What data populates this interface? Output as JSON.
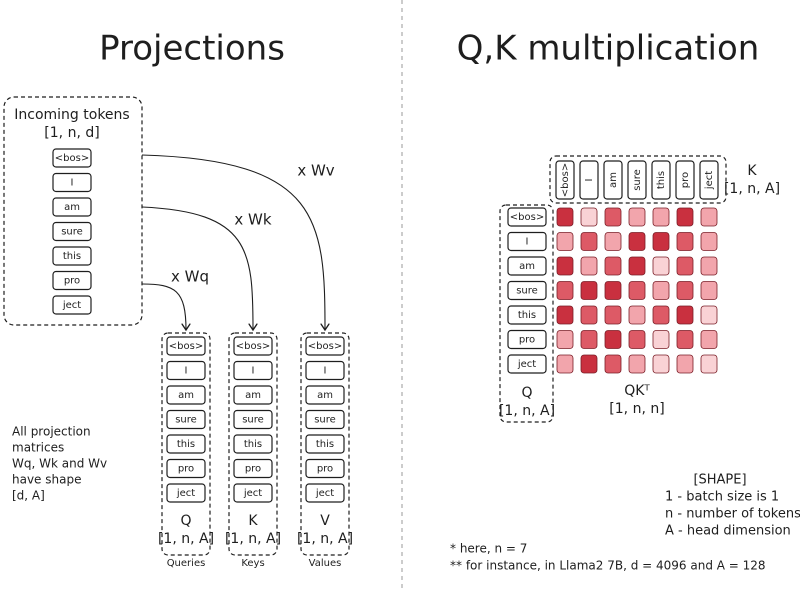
{
  "projections": {
    "title": "Projections",
    "incoming": {
      "title": "Incoming tokens",
      "shape": "[1, n, d]"
    },
    "tokens": [
      "<bos>",
      "I",
      "am",
      "sure",
      "this",
      "pro",
      "ject"
    ],
    "arrow_labels": [
      "x Wq",
      "x Wk",
      "x Wv"
    ],
    "columns": [
      {
        "label": "Q",
        "shape": "[1, n, A]",
        "caption": "Queries"
      },
      {
        "label": "K",
        "shape": "[1, n, A]",
        "caption": "Keys"
      },
      {
        "label": "V",
        "shape": "[1, n, A]",
        "caption": "Values"
      }
    ],
    "note": [
      "All projection",
      "matrices",
      "Wq, Wk and Wv",
      "have shape",
      "[d, A]"
    ]
  },
  "qk": {
    "title": "Q,K multiplication",
    "k": {
      "label": "K",
      "shape": "[1, n, A]"
    },
    "q": {
      "label": "Q",
      "shape": "[1, n, A]"
    },
    "product": {
      "label": "QKᵀ",
      "shape": "[1, n, n]"
    },
    "cell_colors": [
      [
        "#c9303f",
        "#f9d2d5",
        "#dd5a66",
        "#f2a5ac",
        "#f2a5ac",
        "#c9303f",
        "#f2a5ac"
      ],
      [
        "#f2a5ac",
        "#dd5a66",
        "#f2a5ac",
        "#c9303f",
        "#c9303f",
        "#dd5a66",
        "#f2a5ac"
      ],
      [
        "#c9303f",
        "#f2a5ac",
        "#dd5a66",
        "#c9303f",
        "#f9d2d5",
        "#dd5a66",
        "#f2a5ac"
      ],
      [
        "#dd5a66",
        "#c9303f",
        "#c9303f",
        "#dd5a66",
        "#f2a5ac",
        "#dd5a66",
        "#f2a5ac"
      ],
      [
        "#c9303f",
        "#dd5a66",
        "#dd5a66",
        "#f2a5ac",
        "#dd5a66",
        "#c9303f",
        "#f9d2d5"
      ],
      [
        "#f2a5ac",
        "#dd5a66",
        "#c9303f",
        "#dd5a66",
        "#f9d2d5",
        "#dd5a66",
        "#f2a5ac"
      ],
      [
        "#f2a5ac",
        "#c9303f",
        "#dd5a66",
        "#f2a5ac",
        "#f9d2d5",
        "#f2a5ac",
        "#f9d2d5"
      ]
    ],
    "legend": {
      "title": "[SHAPE]",
      "items": [
        "1 - batch size is 1",
        "n - number of tokens",
        "A - head dimension"
      ]
    },
    "footnotes": [
      "* here, n = 7",
      "** for instance, in Llama2 7B, d = 4096 and A = 128"
    ]
  }
}
